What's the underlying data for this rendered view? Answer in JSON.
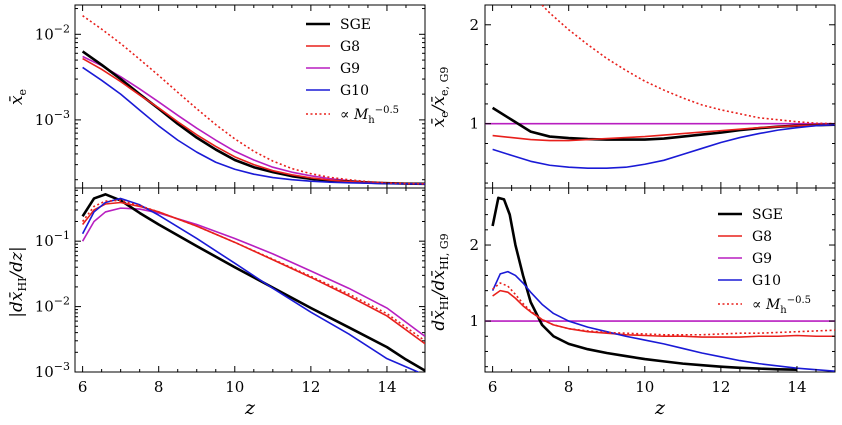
{
  "chart_data": [
    {
      "id": "tl",
      "type": "line",
      "xlim": [
        5.8,
        15
      ],
      "ylim": [
        0.00016,
        0.022
      ],
      "yscale": "log",
      "ylabel": "x̄e",
      "xlabel": "",
      "xticks": [
        6,
        8,
        10,
        12,
        14
      ],
      "show_xticklabels": false,
      "ytick_labels": [
        {
          "value": 0.01,
          "base": "10",
          "exp": "−2"
        },
        {
          "value": 0.001,
          "base": "10",
          "exp": "−3"
        }
      ],
      "legend": "top-right",
      "series": [
        {
          "name": "SGE",
          "color": "#000000",
          "width": 2.6,
          "dash": "",
          "x": [
            6,
            6.5,
            7,
            7.5,
            8,
            8.5,
            9,
            9.5,
            10,
            10.5,
            11,
            11.5,
            12,
            12.5,
            13,
            13.5,
            14,
            14.5,
            15
          ],
          "y": [
            0.0063,
            0.0044,
            0.003,
            0.002,
            0.00135,
            0.0009,
            0.00062,
            0.00045,
            0.00034,
            0.00028,
            0.000245,
            0.00022,
            0.000205,
            0.000195,
            0.00019,
            0.000185,
            0.000182,
            0.00018,
            0.000179
          ]
        },
        {
          "name": "G8",
          "color": "#e8201c",
          "width": 1.6,
          "dash": "",
          "x": [
            6,
            6.5,
            7,
            7.5,
            8,
            8.5,
            9,
            9.5,
            10,
            10.5,
            11,
            11.5,
            12,
            12.5,
            13,
            13.5,
            14,
            14.5,
            15
          ],
          "y": [
            0.0052,
            0.0039,
            0.0028,
            0.00195,
            0.00138,
            0.00095,
            0.00067,
            0.00049,
            0.00037,
            0.0003,
            0.000255,
            0.000228,
            0.00021,
            0.000198,
            0.00019,
            0.000185,
            0.000182,
            0.00018,
            0.000179
          ]
        },
        {
          "name": "G9",
          "color": "#b81fc0",
          "width": 1.6,
          "dash": "",
          "x": [
            6,
            6.5,
            7,
            7.5,
            8,
            8.5,
            9,
            9.5,
            10,
            10.5,
            11,
            11.5,
            12,
            12.5,
            13,
            13.5,
            14,
            14.5,
            15
          ],
          "y": [
            0.0055,
            0.0043,
            0.0032,
            0.0023,
            0.00162,
            0.00113,
            0.0008,
            0.00058,
            0.00043,
            0.00034,
            0.00028,
            0.000245,
            0.000222,
            0.000206,
            0.000195,
            0.000188,
            0.000183,
            0.00018,
            0.000179
          ]
        },
        {
          "name": "G10",
          "color": "#1a1ad6",
          "width": 1.6,
          "dash": "",
          "x": [
            6,
            6.5,
            7,
            7.5,
            8,
            8.5,
            9,
            9.5,
            10,
            10.5,
            11,
            11.5,
            12,
            12.5,
            13,
            13.5,
            14,
            14.5,
            15
          ],
          "y": [
            0.0041,
            0.0029,
            0.002,
            0.0013,
            0.00085,
            0.00058,
            0.00042,
            0.00032,
            0.000265,
            0.000232,
            0.000212,
            0.0002,
            0.000192,
            0.000187,
            0.000184,
            0.000182,
            0.00018,
            0.000179,
            0.000178
          ]
        },
        {
          "name": "∝ M_h^{−0.5}",
          "color": "#e8201c",
          "width": 1.6,
          "dash": "2,2.5",
          "x": [
            6,
            6.5,
            7,
            7.5,
            8,
            8.5,
            9,
            9.5,
            10,
            10.5,
            11,
            11.5,
            12,
            12.5,
            13,
            13.5,
            14,
            14.5,
            15
          ],
          "y": [
            0.0165,
            0.0115,
            0.0078,
            0.0051,
            0.0033,
            0.0021,
            0.00135,
            0.00088,
            0.0006,
            0.00043,
            0.00033,
            0.00027,
            0.000235,
            0.000213,
            0.0002,
            0.00019,
            0.000184,
            0.00018,
            0.000179
          ]
        }
      ]
    },
    {
      "id": "tr",
      "type": "line",
      "xlim": [
        5.8,
        15
      ],
      "ylim": [
        0.35,
        2.2
      ],
      "yscale": "linear",
      "ylabel": "x̄e/x̄e,G9",
      "xlabel": "",
      "xticks": [
        6,
        8,
        10,
        12,
        14
      ],
      "show_xticklabels": false,
      "yticks": [
        1,
        2
      ],
      "series": [
        {
          "name": "SGE",
          "color": "#000000",
          "width": 2.6,
          "dash": "",
          "x": [
            6,
            6.5,
            7,
            7.5,
            8,
            8.5,
            9,
            9.5,
            10,
            10.5,
            11,
            11.5,
            12,
            12.5,
            13,
            13.5,
            14,
            14.5,
            15
          ],
          "y": [
            1.16,
            1.04,
            0.92,
            0.87,
            0.855,
            0.845,
            0.84,
            0.84,
            0.84,
            0.85,
            0.87,
            0.89,
            0.91,
            0.935,
            0.955,
            0.97,
            0.98,
            0.985,
            0.99
          ]
        },
        {
          "name": "G8",
          "color": "#e8201c",
          "width": 1.6,
          "dash": "",
          "x": [
            6,
            6.5,
            7,
            7.5,
            8,
            8.5,
            9,
            9.5,
            10,
            10.5,
            11,
            11.5,
            12,
            12.5,
            13,
            13.5,
            14,
            14.5,
            15
          ],
          "y": [
            0.88,
            0.86,
            0.84,
            0.83,
            0.83,
            0.84,
            0.85,
            0.86,
            0.87,
            0.885,
            0.9,
            0.915,
            0.93,
            0.945,
            0.96,
            0.97,
            0.98,
            0.985,
            0.99
          ]
        },
        {
          "name": "G9",
          "color": "#b81fc0",
          "width": 1.6,
          "dash": "",
          "x": [
            5.8,
            15
          ],
          "y": [
            1,
            1
          ]
        },
        {
          "name": "G10",
          "color": "#1a1ad6",
          "width": 1.6,
          "dash": "",
          "x": [
            6,
            6.5,
            7,
            7.5,
            8,
            8.5,
            9,
            9.5,
            10,
            10.5,
            11,
            11.5,
            12,
            12.5,
            13,
            13.5,
            14,
            14.5,
            15
          ],
          "y": [
            0.74,
            0.68,
            0.62,
            0.58,
            0.56,
            0.55,
            0.55,
            0.56,
            0.59,
            0.63,
            0.69,
            0.75,
            0.81,
            0.86,
            0.9,
            0.935,
            0.96,
            0.98,
            0.99
          ]
        },
        {
          "name": "∝ M_h^{−0.5}",
          "color": "#e8201c",
          "width": 1.6,
          "dash": "2,2.5",
          "x": [
            7.3,
            7.5,
            8,
            8.5,
            9,
            9.5,
            10,
            10.5,
            11,
            11.5,
            12,
            12.5,
            13,
            13.5,
            14,
            14.5,
            15
          ],
          "y": [
            2.2,
            2.12,
            1.95,
            1.8,
            1.66,
            1.54,
            1.43,
            1.34,
            1.26,
            1.19,
            1.14,
            1.1,
            1.06,
            1.04,
            1.02,
            1.005,
            1
          ]
        }
      ]
    },
    {
      "id": "bl",
      "type": "line",
      "xlim": [
        5.8,
        15
      ],
      "ylim": [
        0.001,
        0.65
      ],
      "yscale": "log",
      "ylabel": "|dx̄HI/dz|",
      "xlabel": "z",
      "xticks": [
        6,
        8,
        10,
        12,
        14
      ],
      "xtick_labels": [
        "6",
        "8",
        "10",
        "12",
        "14"
      ],
      "show_xticklabels": true,
      "ytick_labels": [
        {
          "value": 0.1,
          "base": "10",
          "exp": "−1"
        },
        {
          "value": 0.01,
          "base": "10",
          "exp": "−2"
        },
        {
          "value": 0.001,
          "base": "10",
          "exp": "−3"
        }
      ],
      "series": [
        {
          "name": "SGE",
          "color": "#000000",
          "width": 2.6,
          "dash": "",
          "x": [
            6,
            6.3,
            6.6,
            7,
            7.5,
            8,
            9,
            10,
            11,
            12,
            13,
            14,
            14.5,
            15
          ],
          "y": [
            0.24,
            0.45,
            0.52,
            0.42,
            0.27,
            0.18,
            0.084,
            0.04,
            0.0195,
            0.0095,
            0.0048,
            0.0024,
            0.00155,
            0.00105
          ]
        },
        {
          "name": "G8",
          "color": "#e8201c",
          "width": 1.6,
          "dash": "",
          "x": [
            6,
            6.3,
            6.6,
            7,
            7.5,
            8,
            9,
            10,
            11,
            12,
            13,
            14,
            15
          ],
          "y": [
            0.18,
            0.3,
            0.37,
            0.39,
            0.34,
            0.28,
            0.17,
            0.096,
            0.052,
            0.028,
            0.0145,
            0.0072,
            0.0027
          ]
        },
        {
          "name": "G9",
          "color": "#b81fc0",
          "width": 1.6,
          "dash": "",
          "x": [
            6,
            6.3,
            6.6,
            7,
            7.5,
            8,
            9,
            10,
            11,
            12,
            13,
            14,
            15
          ],
          "y": [
            0.1,
            0.2,
            0.28,
            0.32,
            0.31,
            0.27,
            0.18,
            0.11,
            0.064,
            0.035,
            0.019,
            0.0095,
            0.0035
          ]
        },
        {
          "name": "G10",
          "color": "#1a1ad6",
          "width": 1.6,
          "dash": "",
          "x": [
            6,
            6.3,
            6.6,
            7,
            7.5,
            8,
            9,
            10,
            11,
            12,
            13,
            14,
            15
          ],
          "y": [
            0.13,
            0.28,
            0.39,
            0.45,
            0.36,
            0.25,
            0.11,
            0.046,
            0.019,
            0.0082,
            0.0038,
            0.0016,
            0.0009
          ]
        },
        {
          "name": "∝ M_h^{−0.5}",
          "color": "#e8201c",
          "width": 1.6,
          "dash": "2,2.5",
          "x": [
            6,
            6.3,
            6.6,
            7,
            7.5,
            8,
            9,
            10,
            11,
            12,
            13,
            14,
            15
          ],
          "y": [
            0.2,
            0.34,
            0.41,
            0.42,
            0.35,
            0.28,
            0.17,
            0.096,
            0.053,
            0.029,
            0.0155,
            0.0078,
            0.003
          ]
        }
      ]
    },
    {
      "id": "br",
      "type": "line",
      "xlim": [
        5.8,
        15
      ],
      "ylim": [
        0.33,
        2.75
      ],
      "yscale": "linear",
      "ylabel": "dx̄HI/dx̄HI,G9",
      "xlabel": "z",
      "xticks": [
        6,
        8,
        10,
        12,
        14
      ],
      "xtick_labels": [
        "6",
        "8",
        "10",
        "12",
        "14"
      ],
      "show_xticklabels": true,
      "yticks": [
        1,
        2
      ],
      "legend": "upper-right",
      "series": [
        {
          "name": "SGE",
          "color": "#000000",
          "width": 2.6,
          "dash": "",
          "x": [
            6,
            6.15,
            6.3,
            6.45,
            6.6,
            6.8,
            7,
            7.3,
            7.6,
            8,
            8.5,
            9,
            9.5,
            10,
            10.5,
            11,
            11.5,
            12,
            12.5,
            13,
            13.5,
            14
          ],
          "y": [
            2.25,
            2.62,
            2.6,
            2.4,
            2.0,
            1.6,
            1.25,
            0.95,
            0.8,
            0.7,
            0.63,
            0.58,
            0.54,
            0.5,
            0.47,
            0.44,
            0.42,
            0.4,
            0.385,
            0.375,
            0.365,
            0.36
          ]
        },
        {
          "name": "G8",
          "color": "#e8201c",
          "width": 1.6,
          "dash": "",
          "x": [
            6,
            6.2,
            6.4,
            6.6,
            6.8,
            7,
            7.3,
            7.6,
            8,
            8.5,
            9,
            9.5,
            10,
            10.5,
            11,
            11.5,
            12,
            12.5,
            13,
            13.5,
            14,
            14.5,
            15
          ],
          "y": [
            1.33,
            1.4,
            1.38,
            1.3,
            1.2,
            1.12,
            1.02,
            0.95,
            0.9,
            0.86,
            0.84,
            0.82,
            0.81,
            0.8,
            0.8,
            0.79,
            0.79,
            0.79,
            0.8,
            0.8,
            0.81,
            0.8,
            0.8
          ]
        },
        {
          "name": "G9",
          "color": "#b81fc0",
          "width": 1.6,
          "dash": "",
          "x": [
            5.8,
            15
          ],
          "y": [
            1,
            1
          ]
        },
        {
          "name": "G10",
          "color": "#1a1ad6",
          "width": 1.6,
          "dash": "",
          "x": [
            6,
            6.2,
            6.4,
            6.6,
            6.8,
            7,
            7.3,
            7.6,
            8,
            8.5,
            9,
            9.5,
            10,
            10.5,
            11,
            11.5,
            12,
            12.5,
            13,
            13.5,
            14,
            14.5,
            15
          ],
          "y": [
            1.4,
            1.62,
            1.65,
            1.6,
            1.5,
            1.38,
            1.22,
            1.1,
            1.0,
            0.92,
            0.86,
            0.8,
            0.75,
            0.7,
            0.64,
            0.58,
            0.53,
            0.48,
            0.44,
            0.41,
            0.38,
            0.36,
            0.34
          ]
        },
        {
          "name": "∝ M_h^{−0.5}",
          "color": "#e8201c",
          "width": 1.6,
          "dash": "2,2.5",
          "x": [
            6,
            6.2,
            6.4,
            6.6,
            6.8,
            7,
            7.3,
            7.6,
            8,
            8.5,
            9,
            9.5,
            10,
            10.5,
            11,
            11.5,
            12,
            12.5,
            13,
            13.5,
            14,
            14.5,
            15
          ],
          "y": [
            1.42,
            1.5,
            1.46,
            1.35,
            1.23,
            1.13,
            1.02,
            0.95,
            0.9,
            0.87,
            0.85,
            0.84,
            0.83,
            0.82,
            0.82,
            0.82,
            0.83,
            0.84,
            0.84,
            0.85,
            0.86,
            0.87,
            0.88
          ]
        }
      ]
    }
  ]
}
